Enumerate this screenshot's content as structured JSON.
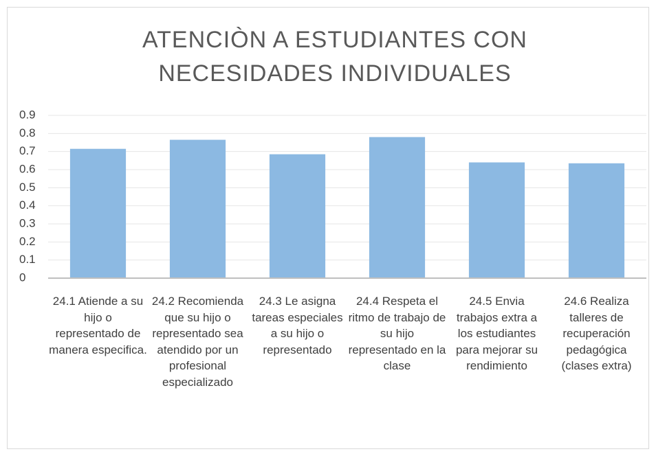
{
  "chart_data": {
    "type": "bar",
    "title": "ATENCIÒN A ESTUDIANTES CON NECESIDADES INDIVIDUALES",
    "categories": [
      "24.1 Atiende a su hijo o representado de manera especifica.",
      "24.2 Recomienda que su hijo o representado sea atendido por un profesional especializado",
      "24.3 Le asigna tareas especiales a su hijo o representado",
      "24.4 Respeta el ritmo de trabajo de su hijo representado en la clase",
      "24.5 Envia trabajos extra a los estudiantes para mejorar su rendimiento",
      "24.6 Realiza talleres de recuperación pedagógica (clases extra)"
    ],
    "values": [
      0.715,
      0.765,
      0.685,
      0.78,
      0.64,
      0.635
    ],
    "color": "#8cb9e2",
    "ylim": [
      0,
      0.9
    ],
    "yticks": [
      0,
      0.1,
      0.2,
      0.3,
      0.4,
      0.5,
      0.6,
      0.7,
      0.8,
      0.9
    ],
    "grid": true
  }
}
